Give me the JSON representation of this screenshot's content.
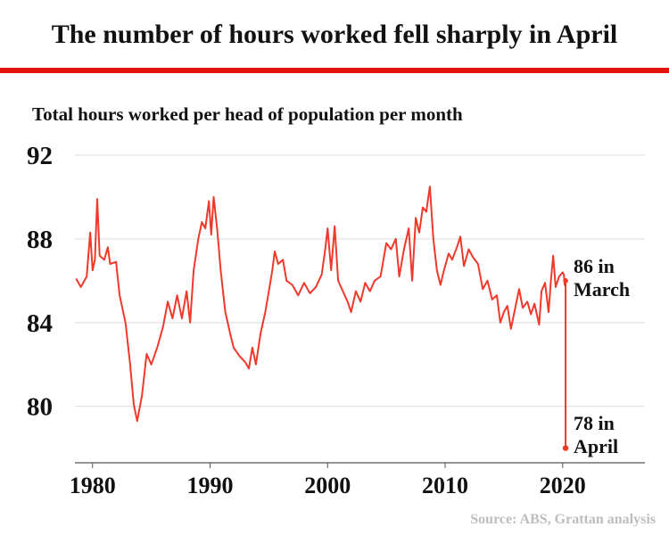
{
  "chart_data": {
    "type": "line",
    "title": "The number of hours worked fell sharply in April",
    "subtitle": "Total hours worked per head of population per month",
    "source": "Source: ABS, Grattan analysis",
    "xlabel": "",
    "ylabel": "",
    "xlim": [
      1978.5,
      2027
    ],
    "ylim": [
      77.3,
      92
    ],
    "grid": true,
    "yticks": [
      80,
      84,
      88,
      92
    ],
    "xticks": [
      1980,
      1990,
      2000,
      2010,
      2020
    ],
    "color": "#f0382b",
    "accent_bar_color": "#e3120b",
    "annotations": [
      {
        "value": 86,
        "lines": [
          "86 in",
          "March"
        ]
      },
      {
        "value": 78,
        "lines": [
          "78 in",
          "April"
        ]
      }
    ],
    "series": [
      {
        "name": "Total hours worked per head of population per month",
        "x": [
          1978.6,
          1979,
          1979.5,
          1979.8,
          1980,
          1980.2,
          1980.4,
          1980.6,
          1981,
          1981.3,
          1981.5,
          1982,
          1982.3,
          1982.8,
          1983.2,
          1983.5,
          1983.8,
          1984.2,
          1984.6,
          1985,
          1985.5,
          1986,
          1986.4,
          1986.8,
          1987.2,
          1987.6,
          1988,
          1988.3,
          1988.6,
          1989,
          1989.3,
          1989.6,
          1989.9,
          1990.1,
          1990.3,
          1990.6,
          1990.9,
          1991.3,
          1991.7,
          1992,
          1992.5,
          1993,
          1993.3,
          1993.6,
          1993.9,
          1994.3,
          1994.7,
          1995,
          1995.3,
          1995.5,
          1995.8,
          1996.2,
          1996.5,
          1997,
          1997.5,
          1998,
          1998.5,
          1999,
          1999.5,
          1999.8,
          2000,
          2000.3,
          2000.6,
          2000.9,
          2001.3,
          2001.7,
          2002,
          2002.4,
          2002.8,
          2003.2,
          2003.6,
          2004,
          2004.5,
          2005,
          2005.4,
          2005.8,
          2006.1,
          2006.5,
          2006.9,
          2007.2,
          2007.5,
          2007.8,
          2008.1,
          2008.4,
          2008.7,
          2009,
          2009.3,
          2009.6,
          2009.9,
          2010.3,
          2010.6,
          2011,
          2011.3,
          2011.6,
          2012,
          2012.4,
          2012.8,
          2013.2,
          2013.6,
          2014,
          2014.4,
          2014.7,
          2015,
          2015.3,
          2015.6,
          2016,
          2016.3,
          2016.6,
          2017,
          2017.3,
          2017.6,
          2018,
          2018.2,
          2018.5,
          2018.8,
          2019,
          2019.2,
          2019.4,
          2019.7,
          2020.0,
          2020.1,
          2020.17,
          2020.25
        ],
        "y": [
          86.1,
          85.7,
          86.2,
          88.3,
          86.5,
          87.0,
          89.9,
          87.2,
          87.0,
          87.6,
          86.8,
          86.9,
          85.3,
          84.0,
          82.0,
          80.1,
          79.3,
          80.5,
          82.5,
          82.0,
          82.8,
          83.8,
          85.0,
          84.2,
          85.3,
          84.2,
          85.5,
          84.0,
          86.5,
          88.0,
          88.8,
          88.5,
          89.8,
          88.2,
          90.0,
          88.5,
          86.5,
          84.5,
          83.5,
          82.8,
          82.4,
          82.1,
          81.8,
          82.8,
          82.0,
          83.5,
          84.5,
          85.5,
          86.5,
          87.4,
          86.8,
          87.0,
          86.0,
          85.8,
          85.3,
          85.9,
          85.4,
          85.7,
          86.3,
          87.5,
          88.5,
          86.5,
          88.6,
          86.0,
          85.5,
          85.0,
          84.5,
          85.5,
          85.0,
          85.9,
          85.5,
          86.0,
          86.2,
          87.8,
          87.5,
          88.0,
          86.2,
          87.5,
          88.5,
          86.0,
          89.0,
          88.3,
          89.5,
          89.3,
          90.5,
          88.0,
          86.5,
          85.8,
          86.5,
          87.3,
          87.0,
          87.6,
          88.1,
          86.7,
          87.5,
          87.1,
          86.8,
          85.6,
          86.0,
          85.1,
          85.3,
          84.0,
          84.5,
          84.8,
          83.7,
          84.8,
          85.6,
          84.7,
          85.0,
          84.4,
          84.9,
          83.9,
          85.5,
          85.9,
          84.5,
          86.0,
          87.2,
          85.7,
          86.2,
          86.4,
          86.3,
          85.8,
          86.0
        ]
      }
    ],
    "final_point": {
      "label": "April 2020",
      "x": 2020.33,
      "y": 78.0
    },
    "march_point": {
      "label": "March 2020",
      "x": 2020.25,
      "y": 86.0
    }
  }
}
